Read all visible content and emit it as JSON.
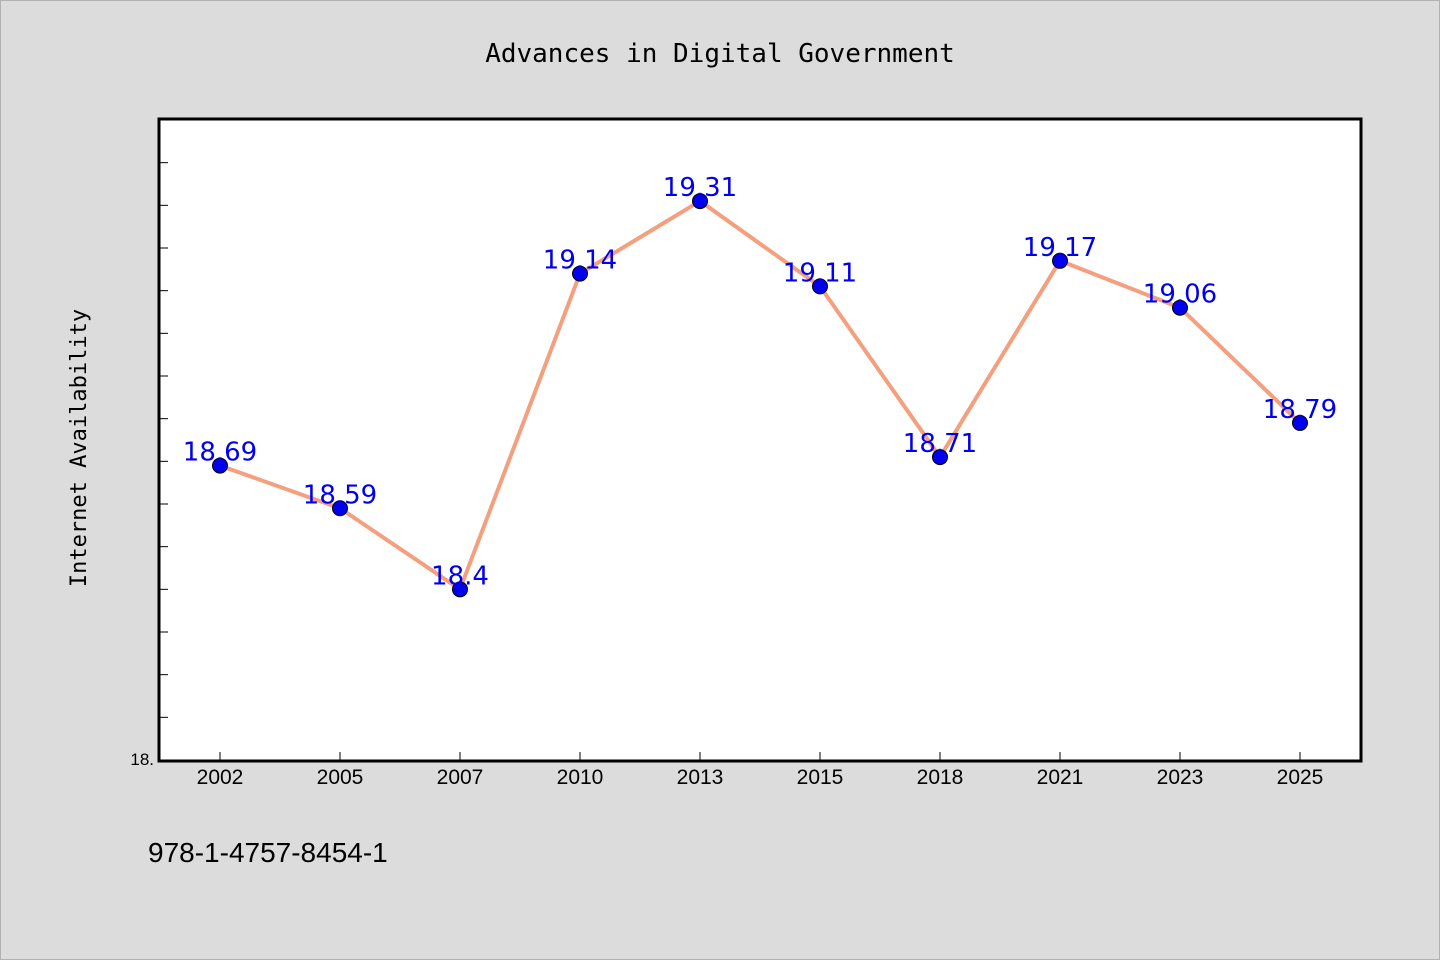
{
  "chart_data": {
    "type": "line",
    "title": "Advances in Digital Government",
    "xlabel": "",
    "ylabel": "Internet Availability",
    "categories": [
      "2002",
      "2005",
      "2007",
      "2010",
      "2013",
      "2015",
      "2018",
      "2021",
      "2023",
      "2025"
    ],
    "series": [
      {
        "values": [
          18.69,
          18.59,
          18.4,
          19.14,
          19.31,
          19.11,
          18.71,
          19.17,
          19.06,
          18.79
        ],
        "data_labels": [
          "18.69",
          "18.59",
          "18.4",
          "19.14",
          "19.31",
          "19.11",
          "18.71",
          "19.17",
          "19.06",
          "18.79"
        ],
        "line_color": "#f4a07e",
        "marker_color": "#0000ee",
        "label_color": "#0000ee"
      }
    ],
    "ylim": [
      18.0,
      19.5
    ],
    "y_tick_step": 0.1,
    "y_tick_labels": [
      "18."
    ],
    "grid": false,
    "legend": "none"
  },
  "footer": {
    "isbn": "978-1-4757-8454-1"
  },
  "colors": {
    "background": "#dcdcdc",
    "plot_background": "#ffffff",
    "axis": "#000000"
  }
}
